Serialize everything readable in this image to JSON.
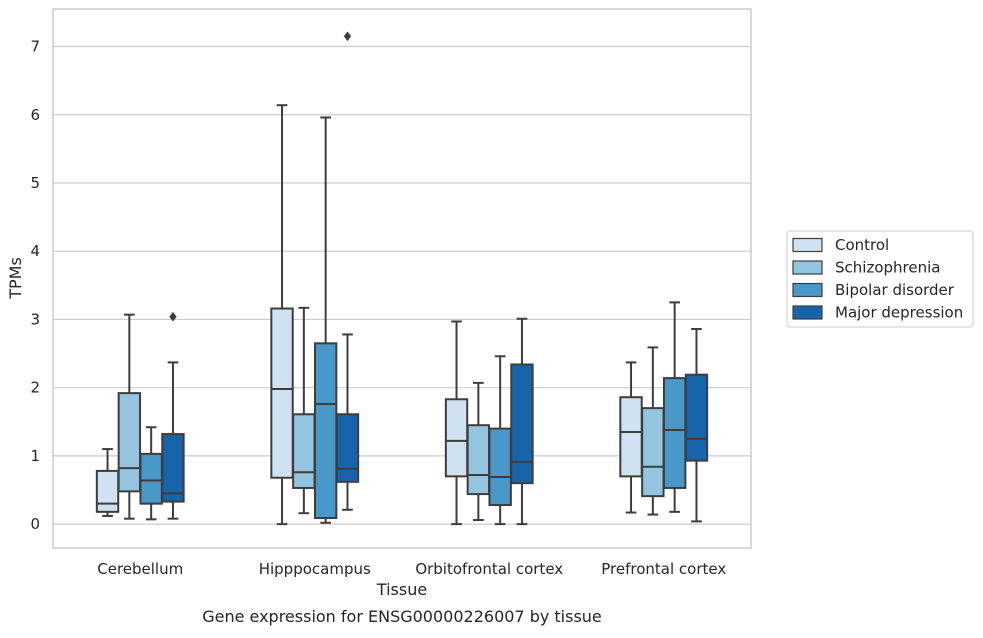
{
  "chart_data": {
    "type": "boxplot",
    "caption": "Gene expression for ENSG00000226007 by tissue",
    "xlabel": "Tissue",
    "ylabel": "TPMs",
    "ylim": [
      -0.35,
      7.55
    ],
    "yticks": [
      0,
      1,
      2,
      3,
      4,
      5,
      6,
      7
    ],
    "grid": true,
    "legend_position": "right",
    "categories": [
      "Cerebellum",
      "Hipppocampus",
      "Orbitofrontal cortex",
      "Prefrontal cortex"
    ],
    "series": [
      {
        "name": "Control",
        "color": "#d0e1f2",
        "boxes": [
          {
            "whislo": 0.12,
            "q1": 0.18,
            "med": 0.3,
            "q3": 0.78,
            "whishi": 1.1,
            "fliers": []
          },
          {
            "whislo": 0.0,
            "q1": 0.68,
            "med": 1.98,
            "q3": 3.16,
            "whishi": 6.14,
            "fliers": []
          },
          {
            "whislo": 0.0,
            "q1": 0.7,
            "med": 1.22,
            "q3": 1.83,
            "whishi": 2.97,
            "fliers": []
          },
          {
            "whislo": 0.17,
            "q1": 0.7,
            "med": 1.35,
            "q3": 1.86,
            "whishi": 2.37,
            "fliers": []
          }
        ]
      },
      {
        "name": "Schizophrenia",
        "color": "#94c4df",
        "boxes": [
          {
            "whislo": 0.08,
            "q1": 0.48,
            "med": 0.82,
            "q3": 1.92,
            "whishi": 3.07,
            "fliers": []
          },
          {
            "whislo": 0.16,
            "q1": 0.53,
            "med": 0.76,
            "q3": 1.61,
            "whishi": 3.17,
            "fliers": []
          },
          {
            "whislo": 0.06,
            "q1": 0.44,
            "med": 0.72,
            "q3": 1.45,
            "whishi": 2.07,
            "fliers": []
          },
          {
            "whislo": 0.14,
            "q1": 0.41,
            "med": 0.84,
            "q3": 1.7,
            "whishi": 2.59,
            "fliers": []
          }
        ]
      },
      {
        "name": "Bipolar disorder",
        "color": "#4a98c9",
        "boxes": [
          {
            "whislo": 0.07,
            "q1": 0.3,
            "med": 0.64,
            "q3": 1.03,
            "whishi": 1.42,
            "fliers": []
          },
          {
            "whislo": 0.02,
            "q1": 0.09,
            "med": 1.76,
            "q3": 2.65,
            "whishi": 5.96,
            "fliers": []
          },
          {
            "whislo": 0.0,
            "q1": 0.28,
            "med": 0.69,
            "q3": 1.4,
            "whishi": 2.46,
            "fliers": []
          },
          {
            "whislo": 0.18,
            "q1": 0.53,
            "med": 1.38,
            "q3": 2.14,
            "whishi": 3.25,
            "fliers": []
          }
        ]
      },
      {
        "name": "Major depression",
        "color": "#1764ab",
        "boxes": [
          {
            "whislo": 0.08,
            "q1": 0.33,
            "med": 0.45,
            "q3": 1.32,
            "whishi": 2.37,
            "fliers": [
              3.04
            ]
          },
          {
            "whislo": 0.21,
            "q1": 0.62,
            "med": 0.81,
            "q3": 1.61,
            "whishi": 2.78,
            "fliers": [
              7.15
            ]
          },
          {
            "whislo": 0.0,
            "q1": 0.6,
            "med": 0.91,
            "q3": 2.34,
            "whishi": 3.01,
            "fliers": []
          },
          {
            "whislo": 0.04,
            "q1": 0.93,
            "med": 1.25,
            "q3": 2.19,
            "whishi": 2.86,
            "fliers": []
          }
        ]
      }
    ]
  }
}
